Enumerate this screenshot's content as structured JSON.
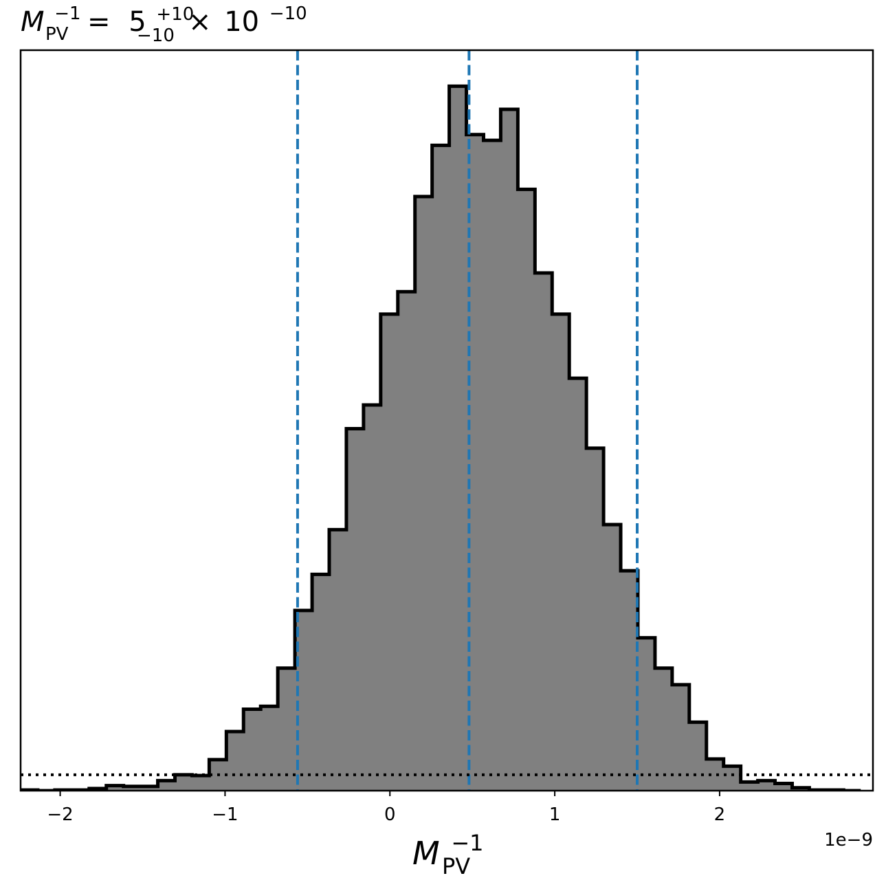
{
  "chart_data": {
    "type": "bar",
    "title": {
      "symbol": "M",
      "symbol_sup": "−1",
      "symbol_sub": "PV",
      "equals": "=",
      "value": "5",
      "err_plus": "+10",
      "err_minus": "−10",
      "times": "×",
      "base": "10",
      "exponent": "−10"
    },
    "xlabel": {
      "symbol": "M",
      "sup": "−1",
      "sub": "PV"
    },
    "offset_text": "1e−9",
    "x_scale_factor": 1e-09,
    "xlim": [
      -2.24,
      2.93
    ],
    "ylim": [
      0,
      1027
    ],
    "x_ticks": [
      -2,
      -1,
      0,
      1,
      2
    ],
    "x_tick_labels": [
      "−2",
      "−1",
      "0",
      "1",
      "2"
    ],
    "grid": false,
    "legend": "none",
    "bin_edges": [
      -2.24,
      -2.136,
      -2.032,
      -1.928,
      -1.824,
      -1.72,
      -1.616,
      -1.512,
      -1.408,
      -1.304,
      -1.2,
      -1.096,
      -0.992,
      -0.888,
      -0.784,
      -0.68,
      -0.576,
      -0.472,
      -0.368,
      -0.264,
      -0.16,
      -0.056,
      0.048,
      0.152,
      0.256,
      0.36,
      0.464,
      0.568,
      0.672,
      0.776,
      0.88,
      0.984,
      1.088,
      1.192,
      1.296,
      1.4,
      1.504,
      1.608,
      1.712,
      1.816,
      1.92,
      2.024,
      2.128,
      2.232,
      2.336,
      2.44,
      2.544,
      2.648,
      2.752,
      2.856
    ],
    "counts": [
      1,
      0,
      1,
      1,
      3,
      7,
      6,
      6,
      14,
      22,
      21,
      43,
      82,
      113,
      117,
      170,
      250,
      300,
      362,
      502,
      535,
      661,
      692,
      824,
      895,
      977,
      910,
      902,
      945,
      834,
      718,
      661,
      572,
      475,
      369,
      305,
      212,
      170,
      147,
      95,
      44,
      34,
      12,
      14,
      10,
      4,
      1,
      1,
      0
    ],
    "bar_color": "#808080",
    "edge_color": "#000000",
    "reference_lines": {
      "quantiles": [
        -0.56,
        0.48,
        1.5
      ],
      "quantile_color": "#1f77b4",
      "quantile_style": "dashed",
      "prior_level": 22,
      "prior_color": "#000000",
      "prior_style": "dotted"
    }
  }
}
